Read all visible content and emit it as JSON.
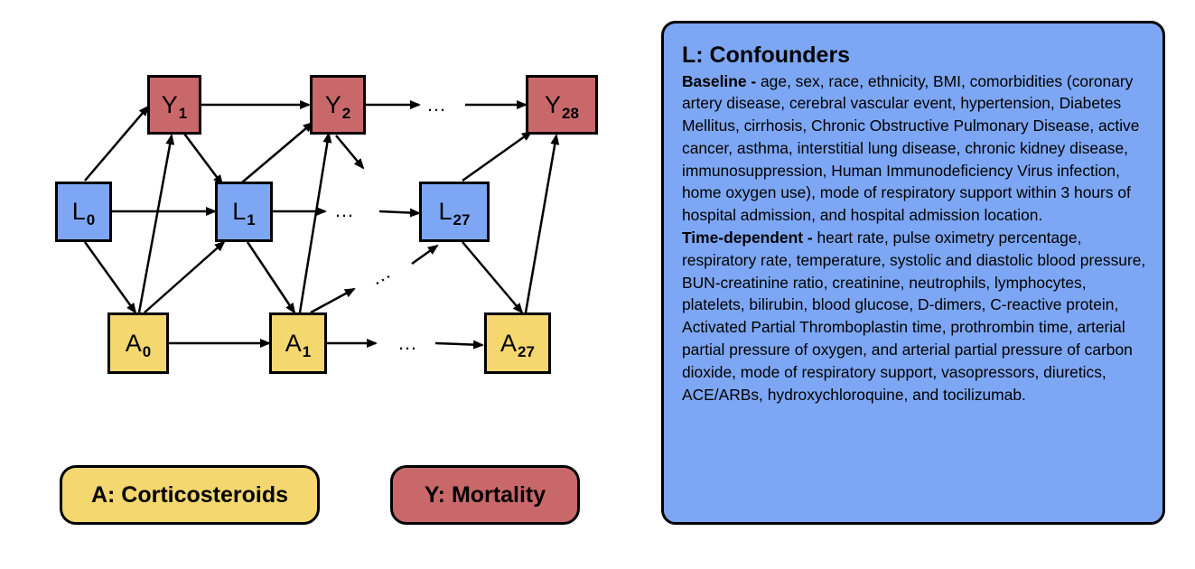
{
  "nodes": {
    "Y1": {
      "letter": "Y",
      "sub": "1"
    },
    "Y2": {
      "letter": "Y",
      "sub": "2"
    },
    "Y28": {
      "letter": "Y",
      "sub": "28"
    },
    "L0": {
      "letter": "L",
      "sub": "0"
    },
    "L1": {
      "letter": "L",
      "sub": "1"
    },
    "L27": {
      "letter": "L",
      "sub": "27"
    },
    "A0": {
      "letter": "A",
      "sub": "0"
    },
    "A1": {
      "letter": "A",
      "sub": "1"
    },
    "A27": {
      "letter": "A",
      "sub": "27"
    }
  },
  "ellipsis": "…",
  "ellipsis_short": "…",
  "legend": {
    "corticosteroids": "A: Corticosteroids",
    "mortality": "Y: Mortality"
  },
  "confounders": {
    "title": "L: Confounders",
    "baseline_label": "Baseline -",
    "baseline_text": " age, sex, race, ethnicity, BMI, comorbidities (coronary artery disease, cerebral vascular event, hypertension, Diabetes Mellitus, cirrhosis, Chronic Obstructive Pulmonary Disease, active cancer, asthma, interstitial lung disease, chronic kidney disease, immunosuppression, Human Immunodeficiency Virus infection, home oxygen use), mode of respiratory support within 3 hours of hospital admission, and hospital admission location.",
    "time_label": "Time-dependent -",
    "time_text": " heart rate, pulse oximetry percentage, respiratory rate, temperature, systolic and diastolic blood pressure, BUN-creatinine ratio, creatinine, neutrophils, lymphocytes, platelets, bilirubin, blood glucose, D-dimers, C-reactive protein, Activated Partial Thromboplastin time, prothrombin time, arterial partial pressure of oxygen, and arterial partial pressure of carbon dioxide, mode of respiratory support, vasopressors, diuretics, ACE/ARBs, hydroxychloroquine, and tocilizumab."
  },
  "colors": {
    "mortality_red": "#c9686a",
    "confounder_blue": "#7da7f4",
    "treatment_yellow": "#f4d76f"
  }
}
